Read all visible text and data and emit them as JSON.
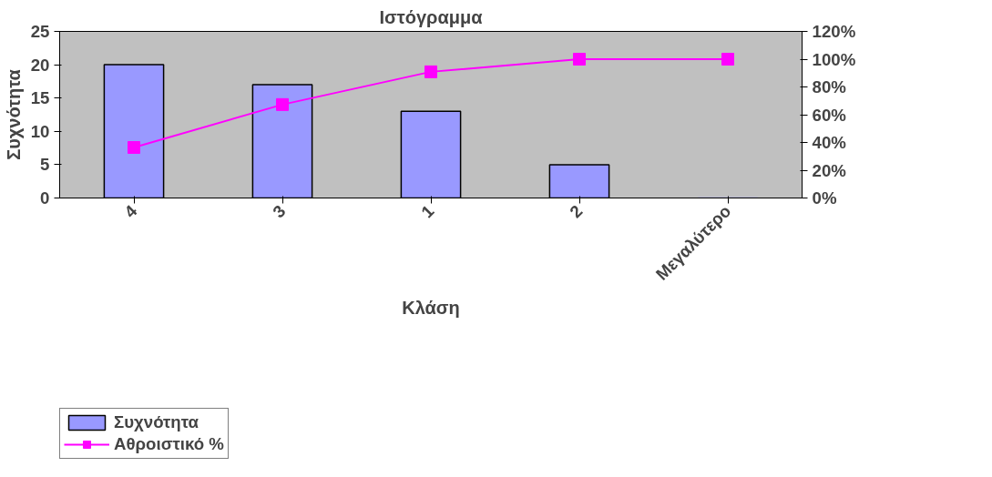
{
  "chart_data": {
    "type": "bar",
    "title": "Ιστόγραμμα",
    "xlabel": "Κλάση",
    "ylabel": "Συχνότητα",
    "categories": [
      "4",
      "3",
      "1",
      "2",
      "Μεγαλύτερο"
    ],
    "series": [
      {
        "name": "Συχνότητα",
        "color": "#9999ff",
        "values": [
          20,
          17,
          13,
          5,
          0
        ]
      },
      {
        "name": "Αθροιστικό %",
        "type": "line",
        "axis": "y2",
        "color": "#ff00ff",
        "values": [
          36.4,
          67.3,
          90.9,
          100,
          100
        ]
      }
    ],
    "ylim": [
      0,
      25
    ],
    "yticks": [
      0,
      5,
      10,
      15,
      20,
      25
    ],
    "y2lim": [
      0,
      120
    ],
    "y2ticks": [
      {
        "value": 0,
        "label": "0%"
      },
      {
        "value": 20,
        "label": "20%"
      },
      {
        "value": 40,
        "label": "40%"
      },
      {
        "value": 60,
        "label": "60%"
      },
      {
        "value": 80,
        "label": "80%"
      },
      {
        "value": 100,
        "label": "100%"
      },
      {
        "value": 120,
        "label": "120%"
      }
    ],
    "grid": false,
    "legend": "bottom left",
    "marker": "square",
    "line_style": "solid"
  }
}
